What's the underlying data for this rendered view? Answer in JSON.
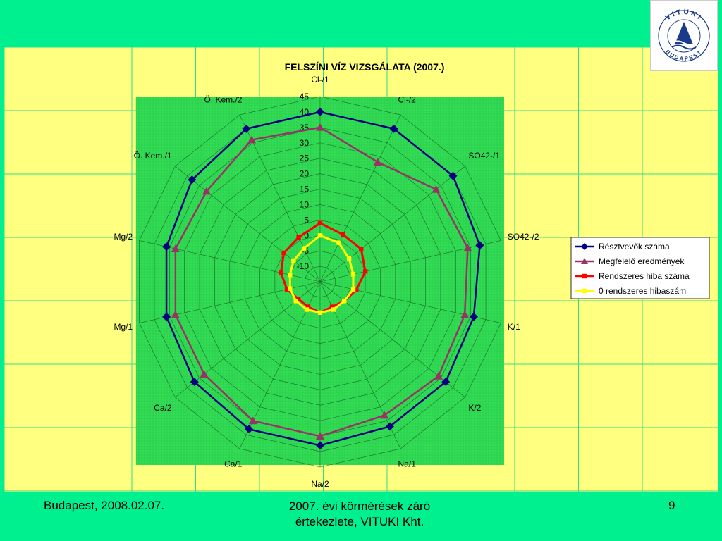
{
  "logo": {
    "text_top": "VITUKI",
    "text_bottom": "BUDAPEST"
  },
  "footer": {
    "left": "Budapest, 2008.02.07.",
    "center_line1": "2007. évi körmérések záró",
    "center_line2": "értekezlete, VITUKI Kht.",
    "right": "9"
  },
  "colors": {
    "background": "#00f090",
    "panel": "#ffff80",
    "plot_area": "#33dd55",
    "series": [
      "#000080",
      "#993366",
      "#ff0000",
      "#ffff00"
    ]
  },
  "chart_data": {
    "type": "radar",
    "title": "FELSZÍNI VÍZ VIZSGÁLATA (2007.)",
    "categories": [
      "Cl-/1",
      "Cl-/2",
      "SO42-/1",
      "SO42-/2",
      "K/1",
      "K/2",
      "Na/1",
      "Na/2",
      "Ca/1",
      "Ca/2",
      "Mg/1",
      "Mg/2",
      "Ö. Kem./1",
      "Ö. Kem./2"
    ],
    "rlim": [
      -15,
      45
    ],
    "ticks": [
      "-10",
      "-5",
      "0",
      "5",
      "10",
      "15",
      "20",
      "25",
      "30",
      "35",
      "40",
      "45"
    ],
    "tick_values": [
      -10,
      -5,
      0,
      5,
      10,
      15,
      20,
      25,
      30,
      35,
      40,
      45
    ],
    "legend_position": "right",
    "series": [
      {
        "name": "Résztvevők száma",
        "marker": "diamond",
        "values": [
          40,
          40,
          40,
          38,
          36,
          37,
          37,
          38,
          38,
          37,
          36,
          36,
          38,
          40
        ]
      },
      {
        "name": "Megfelelő eredmények",
        "marker": "triangle",
        "values": [
          35,
          28,
          33,
          34,
          33,
          34,
          33,
          35,
          35,
          33,
          33,
          33,
          32,
          36
        ]
      },
      {
        "name": "Rendszeres hiba száma",
        "marker": "square",
        "values": [
          4,
          2,
          2,
          0,
          -3,
          -5,
          -6,
          -5,
          -6,
          -6,
          -4,
          -2,
          0,
          1
        ]
      },
      {
        "name": "0 rendszeres hibaszám",
        "marker": "square",
        "values": [
          0,
          -1,
          -3,
          -4,
          -4,
          -5,
          -5,
          -5,
          -5,
          -5,
          -5,
          -5,
          -4,
          -3
        ]
      }
    ]
  }
}
